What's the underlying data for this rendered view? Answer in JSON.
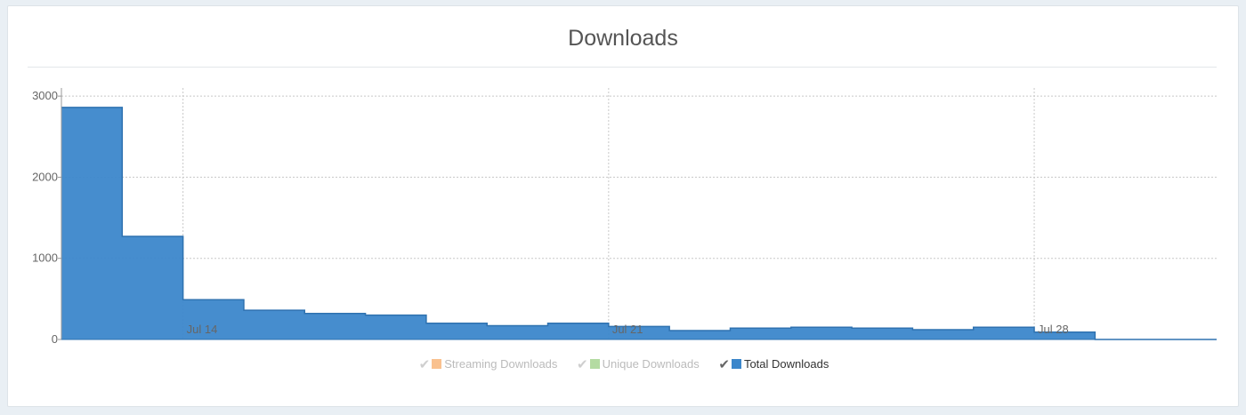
{
  "panel": {
    "title": "Downloads"
  },
  "chart_data": {
    "type": "area",
    "step": true,
    "title": "Downloads",
    "x_range": [
      "2013-07-12",
      "2013-07-31"
    ],
    "ylim": [
      0,
      3100
    ],
    "y_ticks": [
      0,
      1000,
      2000,
      3000
    ],
    "y_tick_labels": [
      "0",
      "1000",
      "2000",
      "3000"
    ],
    "x_ticks": [
      {
        "date": "2013-07-14",
        "label": "Jul 14"
      },
      {
        "date": "2013-07-21",
        "label": "Jul 21"
      },
      {
        "date": "2013-07-28",
        "label": "Jul 28"
      }
    ],
    "grid": true,
    "legend_position": "bottom-center",
    "series": [
      {
        "name": "Streaming Downloads",
        "color": "#f9c18f",
        "visible": false,
        "x": [],
        "values": []
      },
      {
        "name": "Unique Downloads",
        "color": "#b4dba2",
        "visible": false,
        "x": [],
        "values": []
      },
      {
        "name": "Total Downloads",
        "color": "#3c87cb",
        "visible": true,
        "x": [
          "2013-07-12",
          "2013-07-13",
          "2013-07-14",
          "2013-07-15",
          "2013-07-16",
          "2013-07-17",
          "2013-07-18",
          "2013-07-19",
          "2013-07-20",
          "2013-07-21",
          "2013-07-22",
          "2013-07-23",
          "2013-07-24",
          "2013-07-25",
          "2013-07-26",
          "2013-07-27",
          "2013-07-28",
          "2013-07-29",
          "2013-07-30"
        ],
        "values": [
          2860,
          1270,
          490,
          360,
          320,
          300,
          200,
          170,
          200,
          160,
          110,
          140,
          150,
          140,
          120,
          150,
          90,
          0,
          0
        ]
      }
    ]
  }
}
